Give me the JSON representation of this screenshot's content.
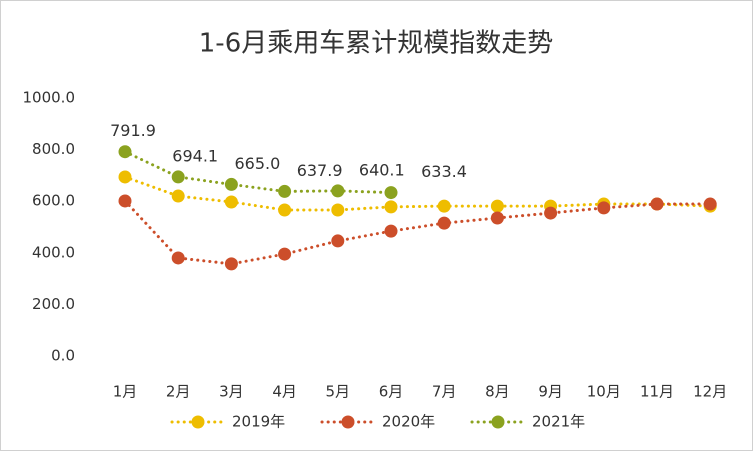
{
  "chart_data": {
    "type": "line",
    "title": "1-6月乘用车累计规模指数走势",
    "categories": [
      "1月",
      "2月",
      "3月",
      "4月",
      "5月",
      "6月",
      "7月",
      "8月",
      "9月",
      "10月",
      "11月",
      "12月"
    ],
    "series": [
      {
        "name": "2019年",
        "color": "#eebd00",
        "values": [
          694,
          620,
          597,
          566,
          566,
          578,
          581,
          581,
          581,
          589,
          589,
          581
        ]
      },
      {
        "name": "2020年",
        "color": "#cc4e2a",
        "values": [
          601,
          380,
          357,
          395,
          446,
          484,
          515,
          535,
          554,
          574,
          589,
          589
        ]
      },
      {
        "name": "2021年",
        "color": "#8ba21f",
        "values": [
          791.9,
          694.1,
          665.0,
          637.9,
          640.1,
          633.4,
          null,
          null,
          null,
          null,
          null,
          null
        ],
        "value_labels": [
          "791.9",
          "694.1",
          "665.0",
          "637.9",
          "640.1",
          "633.4",
          null,
          null,
          null,
          null,
          null,
          null
        ]
      }
    ],
    "ylim": [
      0,
      1000
    ],
    "yticks": [
      {
        "value": 0,
        "label": "0.0"
      },
      {
        "value": 200,
        "label": "200.0"
      },
      {
        "value": 400,
        "label": "400.0"
      },
      {
        "value": 600,
        "label": "600.0"
      },
      {
        "value": 800,
        "label": "800.0"
      },
      {
        "value": 1000,
        "label": "1000.0"
      }
    ],
    "legend": "bottom"
  }
}
